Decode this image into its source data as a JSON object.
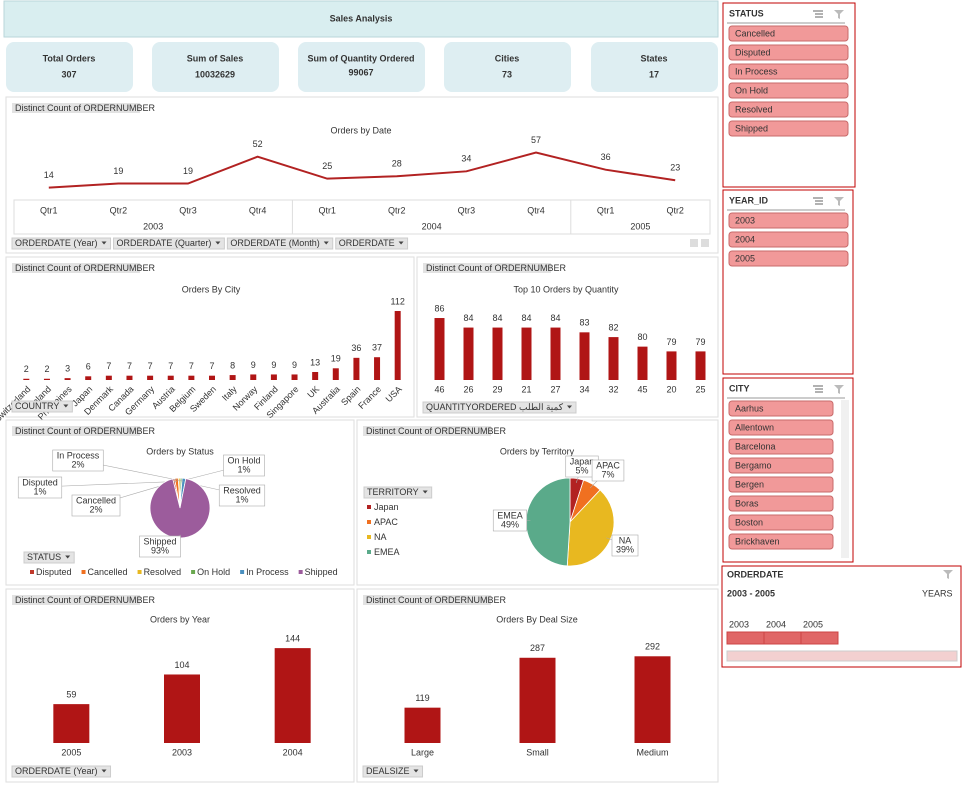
{
  "header": {
    "title": "Sales Analysis"
  },
  "kpis": [
    {
      "label": "Total Orders",
      "value": 307
    },
    {
      "label": "Sum of Sales",
      "value": 10032629
    },
    {
      "label": "Sum of Quantity Ordered",
      "value": 99067
    },
    {
      "label": "Cities",
      "value": 73
    },
    {
      "label": "States",
      "value": 17
    }
  ],
  "slicers": [
    {
      "title": "STATUS",
      "items": [
        "Cancelled",
        "Disputed",
        "In Process",
        "On Hold",
        "Resolved",
        "Shipped"
      ]
    },
    {
      "title": "YEAR_ID",
      "items": [
        "2003",
        "2004",
        "2005"
      ]
    },
    {
      "title": "CITY",
      "items": [
        "Aarhus",
        "Allentown",
        "Barcelona",
        "Bergamo",
        "Bergen",
        "Boras",
        "Boston",
        "Brickhaven"
      ]
    }
  ],
  "timeline": {
    "title": "ORDERDATE",
    "range": "2003 - 2005",
    "unit": "YEARS",
    "years": [
      "2003",
      "2004",
      "2005"
    ]
  },
  "chart_data": [
    {
      "type": "line",
      "title": "Orders by Date",
      "field": "Distinct Count of ORDERNUMBER",
      "color": "#b22222",
      "category_groups": [
        {
          "name": "2003",
          "categories": [
            "Qtr1",
            "Qtr2",
            "Qtr3",
            "Qtr4"
          ]
        },
        {
          "name": "2004",
          "categories": [
            "Qtr1",
            "Qtr2",
            "Qtr3",
            "Qtr4"
          ]
        },
        {
          "name": "2005",
          "categories": [
            "Qtr1",
            "Qtr2"
          ]
        }
      ],
      "values": [
        14,
        19,
        19,
        52,
        25,
        28,
        34,
        57,
        36,
        23
      ],
      "ylim": [
        0,
        70
      ],
      "filters": [
        "ORDERDATE (Year)",
        "ORDERDATE (Quarter)",
        "ORDERDATE (Month)",
        "ORDERDATE"
      ]
    },
    {
      "type": "bar",
      "title": "Orders By City",
      "field": "Distinct Count of ORDERNUMBER",
      "color": "#b01515",
      "categories": [
        "Switzerland",
        "Ireland",
        "Philippines",
        "Japan",
        "Denmark",
        "Canada",
        "Germany",
        "Austria",
        "Belgium",
        "Sweden",
        "Italy",
        "Norway",
        "Finland",
        "Singapore",
        "UK",
        "Australia",
        "Spain",
        "France",
        "USA"
      ],
      "values": [
        2,
        2,
        3,
        6,
        7,
        7,
        7,
        7,
        7,
        7,
        8,
        9,
        9,
        9,
        13,
        19,
        36,
        37,
        112
      ],
      "ylim": [
        0,
        125
      ],
      "filters": [
        "COUNTRY"
      ]
    },
    {
      "type": "bar",
      "title": "Top 10 Orders by Quantity",
      "field": "Distinct Count of ORDERNUMBER",
      "color": "#b01515",
      "categories": [
        "46",
        "26",
        "29",
        "21",
        "27",
        "34",
        "32",
        "45",
        "20",
        "25"
      ],
      "values": [
        86,
        84,
        84,
        84,
        84,
        83,
        82,
        80,
        79,
        79
      ],
      "ylim": [
        73,
        88
      ],
      "filters": [
        "QUANTITYORDERED كمية الطلب"
      ]
    },
    {
      "type": "pie",
      "title": "Orders by Status",
      "field": "Distinct Count of ORDERNUMBER",
      "categories": [
        "Disputed",
        "Cancelled",
        "Resolved",
        "On Hold",
        "In Process",
        "Shipped"
      ],
      "values": [
        1,
        2,
        1,
        1,
        2,
        93
      ],
      "value_labels": [
        "1%",
        "2%",
        "1%",
        "1%",
        "2%",
        "93%"
      ],
      "colors": [
        "#c0392b",
        "#f07020",
        "#e8b820",
        "#6aa84f",
        "#4a90c0",
        "#9c5c9c"
      ],
      "legend": "bottom",
      "filters": [
        "STATUS"
      ]
    },
    {
      "type": "pie",
      "title": "Orders by Territory",
      "field": "Distinct Count of ORDERNUMBER",
      "categories": [
        "Japan",
        "APAC",
        "NA",
        "EMEA"
      ],
      "values": [
        5,
        7,
        39,
        49
      ],
      "value_labels": [
        "5%",
        "7%",
        "39%",
        "49%"
      ],
      "colors": [
        "#b22222",
        "#f07020",
        "#e8b820",
        "#5aaa8a"
      ],
      "legend": "left",
      "filters": [
        "TERRITORY"
      ]
    },
    {
      "type": "bar",
      "title": "Orders by Year",
      "field": "Distinct Count of ORDERNUMBER",
      "color": "#b01515",
      "categories": [
        "2005",
        "2003",
        "2004"
      ],
      "values": [
        59,
        104,
        144
      ],
      "ylim": [
        0,
        170
      ],
      "filters": [
        "ORDERDATE (Year)"
      ]
    },
    {
      "type": "bar",
      "title": "Orders By Deal Size",
      "field": "Distinct Count of ORDERNUMBER",
      "color": "#b01515",
      "categories": [
        "Large",
        "Small",
        "Medium"
      ],
      "values": [
        119,
        287,
        292
      ],
      "ylim": [
        0,
        330
      ],
      "filters": [
        "DEALSIZE"
      ]
    }
  ]
}
